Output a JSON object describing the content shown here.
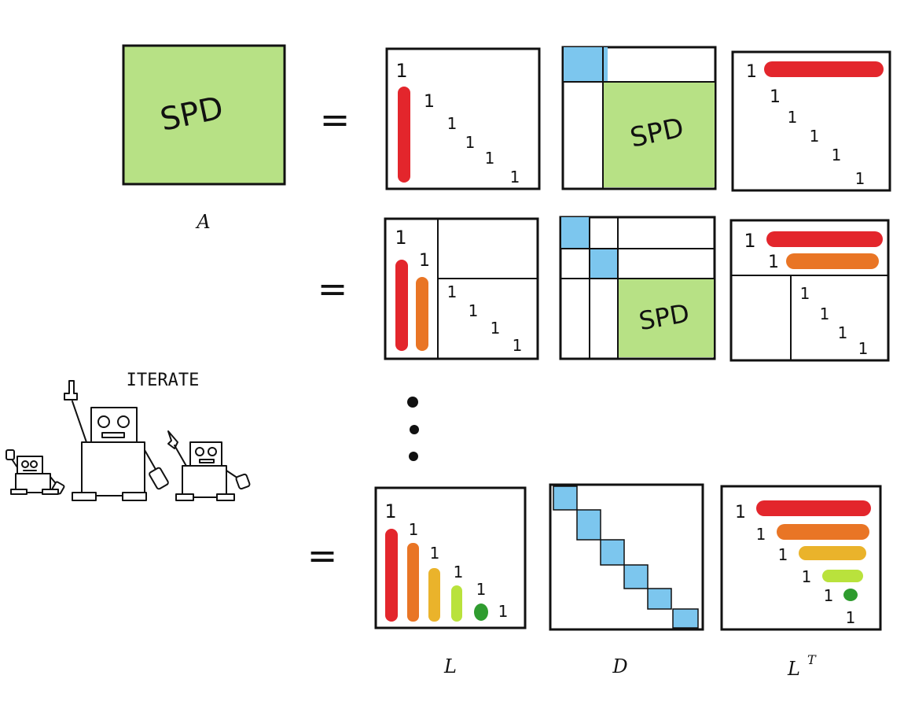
{
  "matrix_a": {
    "text": "SPD",
    "label": "A",
    "fill": "#b7e185"
  },
  "equals": "=",
  "one": "1",
  "spd_text": "SPD",
  "dots": "⋮",
  "iterate_label": "ITERATE",
  "columns": {
    "l": "L",
    "d": "D",
    "lt_base": "L",
    "lt_sup": "T"
  },
  "colors": {
    "spd": "#b7e185",
    "diag": "#7cc6ee",
    "red": "#e3262c",
    "orange": "#e97525",
    "amber": "#eab32b",
    "lime": "#b9e23c",
    "green": "#2f9c2f",
    "ink": "#111111"
  },
  "icons": {
    "robots": "robots-icon"
  }
}
